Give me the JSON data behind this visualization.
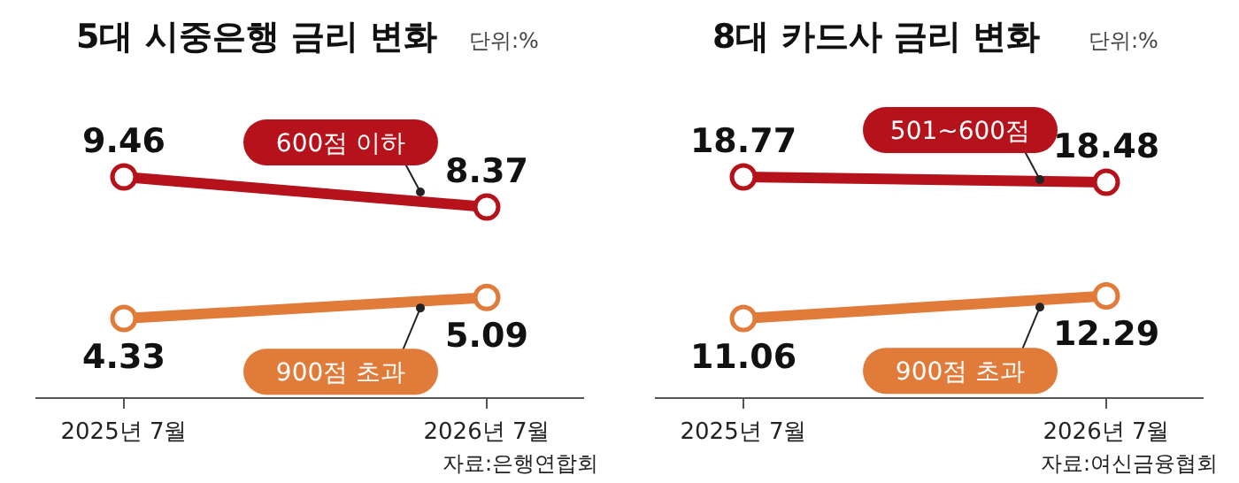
{
  "chart_data": [
    {
      "type": "line",
      "title": "5대 시중은행 금리 변화",
      "annotations": [
        "단위:%",
        "자료:은행연합회"
      ],
      "categories": [
        "2025년 7월",
        "2026년 7월"
      ],
      "tick_labels": "x",
      "data_labels": true,
      "marker": "circle",
      "series": [
        {
          "name": "600점 이하",
          "color": "#b5121b",
          "values": [
            9.46,
            8.37
          ]
        },
        {
          "name": "900점 초과",
          "color": "#e07b39",
          "values": [
            4.33,
            5.09
          ]
        }
      ]
    },
    {
      "type": "line",
      "title": "8대 카드사 금리 변화",
      "annotations": [
        "단위:%",
        "자료:여신금융협회"
      ],
      "categories": [
        "2025년 7월",
        "2026년 7월"
      ],
      "tick_labels": "x",
      "data_labels": true,
      "marker": "circle",
      "series": [
        {
          "name": "501~600점",
          "color": "#b5121b",
          "values": [
            18.77,
            18.48
          ]
        },
        {
          "name": "900점 초과",
          "color": "#e07b39",
          "values": [
            11.06,
            12.29
          ]
        }
      ]
    }
  ]
}
